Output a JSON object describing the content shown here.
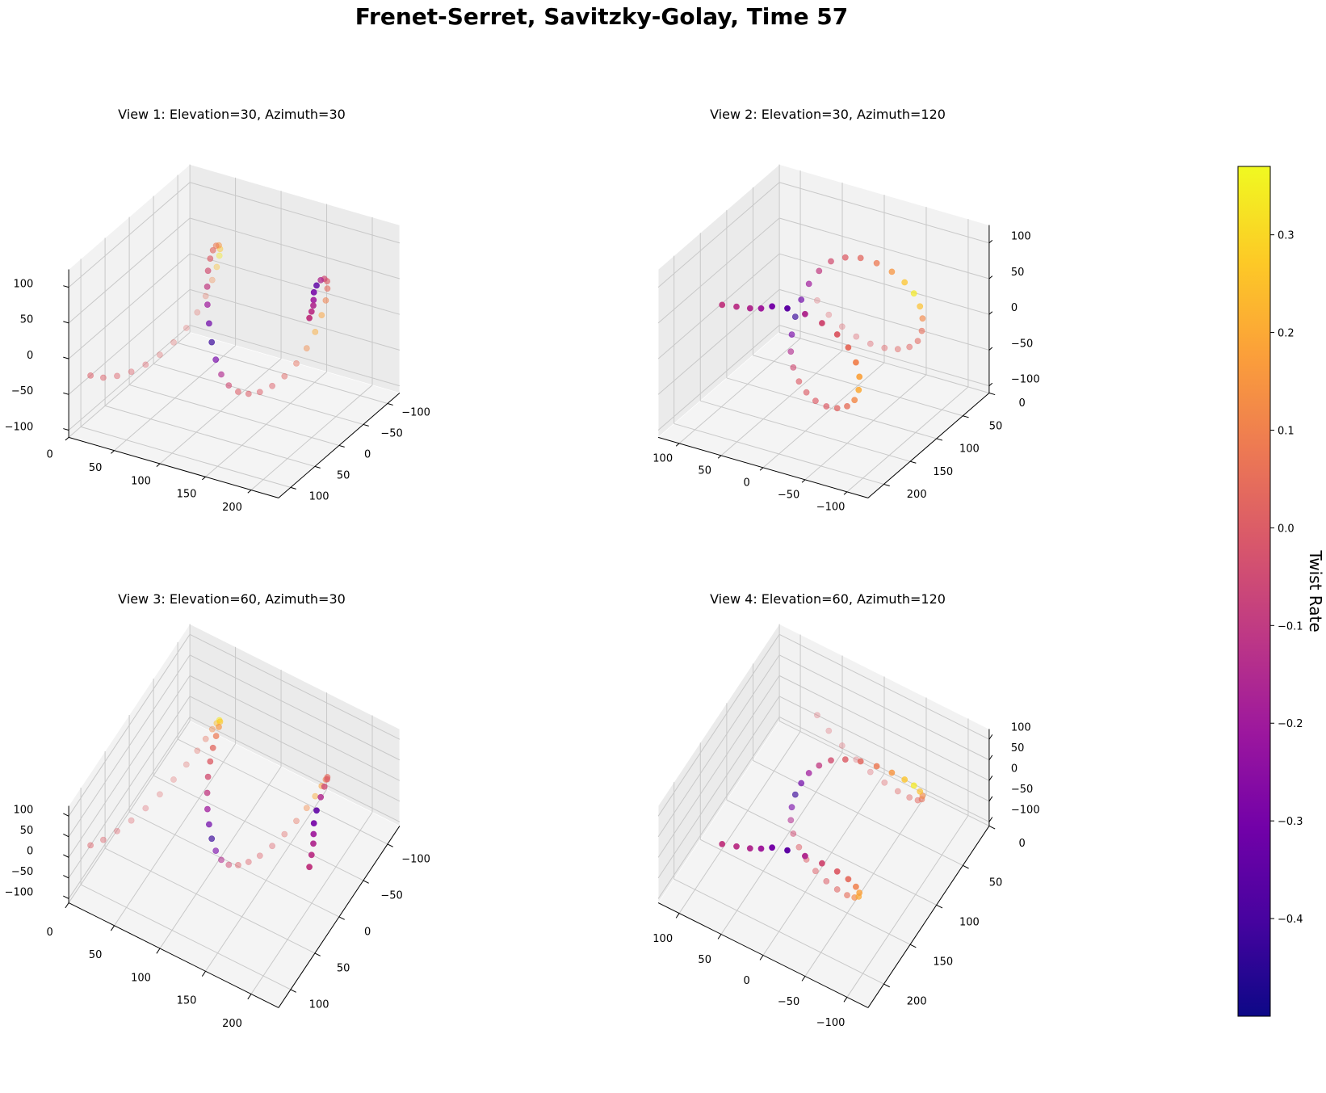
{
  "title": "Frenet-Serret, Savitzky-Golay, Time 57",
  "colors": {
    "plasma": [
      "#0d0887",
      "#46039f",
      "#7201a8",
      "#9c179e",
      "#bd3786",
      "#d8576b",
      "#ed7953",
      "#fb9f3a",
      "#fdca26",
      "#f0f921"
    ],
    "pane_left": "#f2f2f2",
    "pane_right": "#ebebeb",
    "floor": "#f4f4f4",
    "grid": "#c8c8c8"
  },
  "chart_data": {
    "type": "scatter",
    "mode": "3d",
    "colorbar": {
      "label": "Twist Rate",
      "range": [
        -0.5,
        0.37
      ],
      "ticks": [
        -0.4,
        -0.3,
        -0.2,
        -0.1,
        0.0,
        0.1,
        0.2,
        0.3
      ],
      "tick_labels": [
        "−0.4",
        "−0.3",
        "−0.2",
        "−0.1",
        "0.0",
        "0.1",
        "0.2",
        "0.3"
      ]
    },
    "axes": {
      "x": {
        "range": [
          -125,
          125
        ],
        "ticks": [
          -100,
          -50,
          0,
          50,
          100
        ],
        "tick_labels": [
          "−100",
          "−50",
          "0",
          "50",
          "100"
        ]
      },
      "y": {
        "range": [
          0,
          230
        ],
        "ticks": [
          0,
          50,
          100,
          150,
          200
        ],
        "tick_labels": [
          "0",
          "50",
          "100",
          "150",
          "200"
        ]
      },
      "z": {
        "range": [
          -110,
          125
        ],
        "ticks": [
          -100,
          -50,
          0,
          50,
          100
        ],
        "tick_labels": [
          "−100",
          "−50",
          "0",
          "50",
          "100"
        ]
      }
    },
    "views": [
      {
        "title": "View 1: Elevation=30, Azimuth=30",
        "elevation": 30,
        "azimuth": 30
      },
      {
        "title": "View 2: Elevation=30, Azimuth=120",
        "elevation": 30,
        "azimuth": 120
      },
      {
        "title": "View 3: Elevation=60, Azimuth=30",
        "elevation": 60,
        "azimuth": 30
      },
      {
        "title": "View 4: Elevation=60, Azimuth=120",
        "elevation": 60,
        "azimuth": 120
      }
    ],
    "series": [
      {
        "points": [
          [
            80,
            0,
            -50,
            0.0
          ],
          [
            63,
            5,
            -61,
            0.0
          ],
          [
            44,
            10,
            -68,
            0.0
          ],
          [
            24,
            15,
            -72,
            0.0
          ],
          [
            4,
            20,
            -72,
            0.0
          ],
          [
            -16,
            25,
            -68,
            0.01
          ],
          [
            -35,
            30,
            -60,
            0.02
          ],
          [
            -52,
            35,
            -48,
            0.02
          ],
          [
            -65,
            40,
            -32,
            0.03
          ],
          [
            -73,
            45,
            -12,
            0.05
          ],
          [
            -77,
            50,
            10,
            0.12
          ],
          [
            -77,
            55,
            30,
            0.25
          ],
          [
            -73,
            60,
            50,
            0.34
          ],
          [
            -65,
            65,
            66,
            0.26
          ],
          [
            -53,
            70,
            80,
            0.15
          ],
          [
            -38,
            75,
            90,
            0.08
          ],
          [
            -22,
            80,
            95,
            0.03
          ],
          [
            -7,
            85,
            94,
            0.0
          ],
          [
            7,
            90,
            87,
            -0.04
          ],
          [
            18,
            95,
            73,
            -0.1
          ],
          [
            27,
            100,
            55,
            -0.2
          ],
          [
            33,
            105,
            34,
            -0.32
          ],
          [
            37,
            110,
            12,
            -0.43
          ],
          [
            38,
            115,
            -10,
            -0.3
          ],
          [
            36,
            120,
            -30,
            -0.15
          ],
          [
            30,
            125,
            -47,
            -0.05
          ],
          [
            20,
            130,
            -60,
            0.0
          ],
          [
            8,
            135,
            -68,
            0.0
          ],
          [
            -6,
            140,
            -72,
            0.0
          ],
          [
            -22,
            145,
            -71,
            0.0
          ],
          [
            -38,
            150,
            -65,
            0.02
          ],
          [
            -53,
            155,
            -54,
            0.05
          ],
          [
            -65,
            160,
            -38,
            0.12
          ],
          [
            -73,
            165,
            -18,
            0.2
          ],
          [
            -77,
            170,
            5,
            0.18
          ],
          [
            -76,
            175,
            28,
            0.1
          ],
          [
            -70,
            180,
            50,
            0.04
          ],
          [
            -60,
            185,
            68,
            0.0
          ],
          [
            -45,
            190,
            82,
            -0.05
          ],
          [
            -28,
            195,
            92,
            -0.15
          ],
          [
            -10,
            200,
            97,
            -0.35
          ],
          [
            5,
            205,
            98,
            -0.3
          ],
          [
            15,
            210,
            95,
            -0.2
          ],
          [
            25,
            215,
            95,
            -0.15
          ],
          [
            38,
            220,
            96,
            -0.12
          ],
          [
            52,
            225,
            97,
            -0.1
          ]
        ]
      }
    ]
  }
}
